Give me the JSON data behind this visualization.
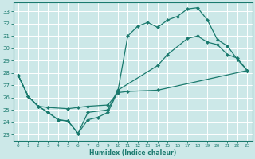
{
  "xlabel": "Humidex (Indice chaleur)",
  "bg_color": "#cce8e8",
  "grid_color": "#ffffff",
  "line_color": "#1a7a6e",
  "xlim": [
    -0.5,
    23.5
  ],
  "ylim": [
    22.5,
    33.7
  ],
  "xticks": [
    0,
    1,
    2,
    3,
    4,
    5,
    6,
    7,
    8,
    9,
    10,
    11,
    12,
    13,
    14,
    15,
    16,
    17,
    18,
    19,
    20,
    21,
    22,
    23
  ],
  "yticks": [
    23,
    24,
    25,
    26,
    27,
    28,
    29,
    30,
    31,
    32,
    33
  ],
  "line1_x": [
    0,
    1,
    2,
    3,
    5,
    6,
    7,
    9,
    10,
    11,
    14,
    23
  ],
  "line1_y": [
    27.8,
    26.1,
    25.3,
    25.2,
    25.1,
    25.2,
    25.3,
    25.4,
    26.4,
    26.5,
    26.6,
    28.2
  ],
  "line2_x": [
    0,
    1,
    2,
    3,
    4,
    5,
    6,
    7,
    8,
    9,
    10,
    11,
    12,
    13,
    14,
    15,
    16,
    17,
    18,
    19,
    20,
    21,
    22,
    23
  ],
  "line2_y": [
    27.8,
    26.1,
    25.3,
    24.8,
    24.2,
    24.1,
    23.1,
    24.2,
    24.4,
    24.8,
    26.5,
    31.0,
    31.8,
    32.1,
    31.7,
    32.3,
    32.6,
    33.2,
    33.3,
    32.3,
    30.7,
    30.2,
    29.1,
    28.2
  ],
  "line3_x": [
    0,
    1,
    2,
    3,
    4,
    5,
    6,
    7,
    9,
    10,
    14,
    15,
    17,
    18,
    19,
    20,
    21,
    22,
    23
  ],
  "line3_y": [
    27.8,
    26.1,
    25.3,
    24.8,
    24.2,
    24.1,
    23.1,
    24.8,
    25.0,
    26.6,
    28.6,
    29.5,
    30.8,
    31.0,
    30.5,
    30.3,
    29.5,
    29.2,
    28.2
  ]
}
